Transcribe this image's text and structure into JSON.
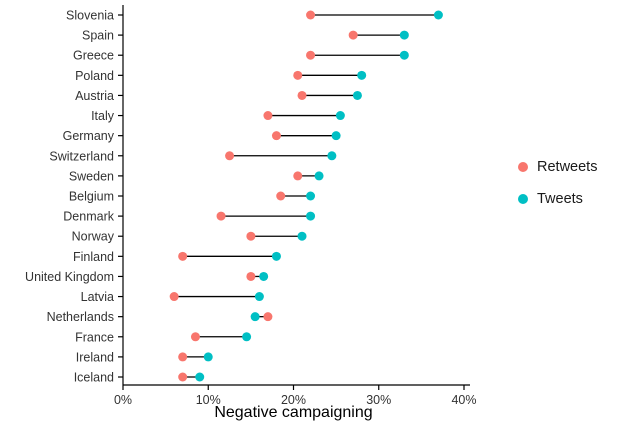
{
  "chart_data": {
    "type": "dumbbell",
    "title": "",
    "xlabel": "Negative campaigning",
    "ylabel": "",
    "xlim": [
      0,
      40
    ],
    "xticks": [
      {
        "value": 0,
        "label": "0%"
      },
      {
        "value": 10,
        "label": "10%"
      },
      {
        "value": 20,
        "label": "20%"
      },
      {
        "value": 30,
        "label": "30%"
      },
      {
        "value": 40,
        "label": "40%"
      }
    ],
    "grid": false,
    "legend_position": "right",
    "connector_color": "#000000",
    "categories": [
      "Slovenia",
      "Spain",
      "Greece",
      "Poland",
      "Austria",
      "Italy",
      "Germany",
      "Switzerland",
      "Sweden",
      "Belgium",
      "Denmark",
      "Norway",
      "Finland",
      "United Kingdom",
      "Latvia",
      "Netherlands",
      "France",
      "Ireland",
      "Iceland"
    ],
    "series": [
      {
        "name": "Retweets",
        "color": "#F8766D",
        "values": [
          22,
          27,
          22,
          20.5,
          21,
          17,
          18,
          12.5,
          20.5,
          18.5,
          11.5,
          15,
          7,
          15,
          6,
          17,
          8.5,
          7,
          7
        ]
      },
      {
        "name": "Tweets",
        "color": "#00BFC4",
        "values": [
          37,
          33,
          33,
          28,
          27.5,
          25.5,
          25,
          24.5,
          23,
          22,
          22,
          21,
          18,
          16.5,
          16,
          15.5,
          14.5,
          10,
          9
        ]
      }
    ]
  }
}
